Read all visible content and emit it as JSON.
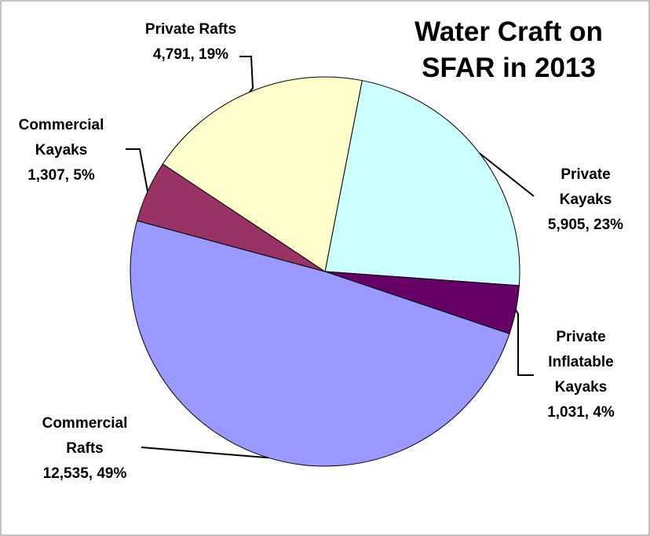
{
  "chart_data": {
    "type": "pie",
    "title": "Water Craft on SFAR in 2013",
    "categories": [
      "Private Kayaks",
      "Private Inflatable Kayaks",
      "Commercial Rafts",
      "Commercial Kayaks",
      "Private Rafts"
    ],
    "values": [
      5905,
      1031,
      12535,
      1307,
      4791
    ],
    "value_labels": [
      "5,905, 23%",
      "1,031, 4%",
      "12,535, 49%",
      "1,307, 5%",
      "4,791, 19%"
    ],
    "colors": [
      "#ccffff",
      "#660066",
      "#9999ff",
      "#993366",
      "#ffffcc"
    ]
  }
}
